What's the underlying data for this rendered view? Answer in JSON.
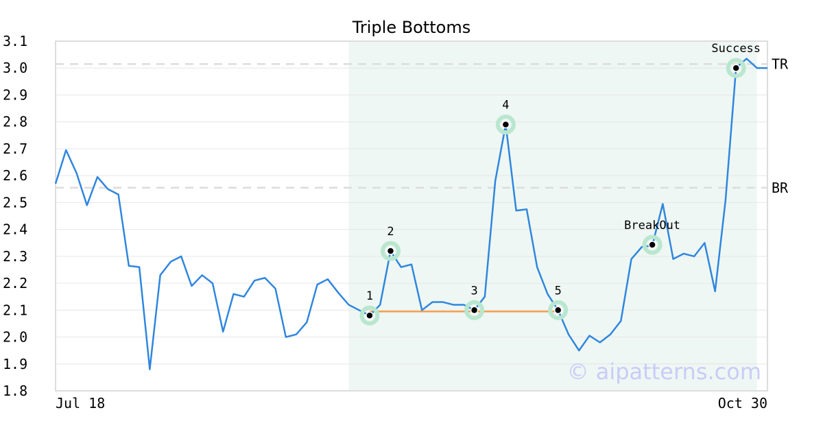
{
  "chart_data": {
    "type": "line",
    "title": "Triple Bottoms",
    "xlabel": "",
    "ylabel": "",
    "x_tick_labels": [
      "Jul 18",
      "Oct 30"
    ],
    "y_ticks": [
      "1.8",
      "1.9",
      "2.0",
      "2.1",
      "2.2",
      "2.3",
      "2.4",
      "2.5",
      "2.6",
      "2.7",
      "2.8",
      "2.9",
      "3.0",
      "3.1"
    ],
    "ylim": [
      1.8,
      3.1
    ],
    "grid": true,
    "series": [
      {
        "color": "#2f86de",
        "values": [
          2.57,
          2.695,
          2.61,
          2.49,
          2.595,
          2.55,
          2.53,
          2.265,
          2.26,
          1.88,
          2.23,
          2.28,
          2.3,
          2.19,
          2.23,
          2.2,
          2.02,
          2.16,
          2.15,
          2.21,
          2.22,
          2.18,
          2.0,
          2.01,
          2.055,
          2.195,
          2.215,
          2.165,
          2.12,
          2.1,
          2.08,
          2.12,
          2.32,
          2.26,
          2.27,
          2.1,
          2.13,
          2.13,
          2.12,
          2.12,
          2.1,
          2.15,
          2.58,
          2.79,
          2.47,
          2.475,
          2.26,
          2.16,
          2.1,
          2.01,
          1.95,
          2.005,
          1.98,
          2.01,
          2.06,
          2.29,
          2.335,
          2.34,
          2.495,
          2.29,
          2.31,
          2.3,
          2.35,
          2.17,
          2.51,
          3.0,
          3.035,
          3.0,
          3.0
        ]
      }
    ],
    "levels": [
      {
        "label": "TR",
        "value": 3.015
      },
      {
        "label": "BR",
        "value": 2.555
      }
    ],
    "pattern_region": {
      "start_index": 28,
      "end_index": 67,
      "color": "#eef7f3"
    },
    "support_line": {
      "value": 2.095,
      "start_index": 30,
      "end_index": 48,
      "color": "#f4a050"
    },
    "points": [
      {
        "label": "1",
        "index": 30,
        "value": 2.08
      },
      {
        "label": "2",
        "index": 32,
        "value": 2.32
      },
      {
        "label": "3",
        "index": 40,
        "value": 2.1
      },
      {
        "label": "4",
        "index": 43,
        "value": 2.79
      },
      {
        "label": "5",
        "index": 48,
        "value": 2.1
      },
      {
        "label": "BreakOut",
        "index": 57,
        "value": 2.343
      },
      {
        "label": "Success",
        "index": 65,
        "value": 3.0
      }
    ],
    "watermark": "© aipatterns.com"
  }
}
